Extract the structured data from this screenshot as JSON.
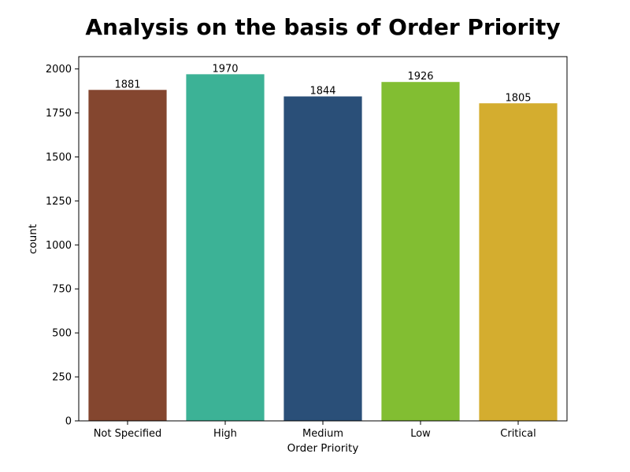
{
  "chart_data": {
    "type": "bar",
    "title": "Analysis on the basis of Order Priority",
    "xlabel": "Order Priority",
    "ylabel": "count",
    "categories": [
      "Not Specified",
      "High",
      "Medium",
      "Low",
      "Critical"
    ],
    "values": [
      1881,
      1970,
      1844,
      1926,
      1805
    ],
    "data_labels": [
      "1881",
      "1970",
      "1844",
      "1926",
      "1805"
    ],
    "colors": [
      "#84462f",
      "#3cb296",
      "#2a4f78",
      "#82be32",
      "#d4ad2f"
    ],
    "ylim": [
      0,
      2070
    ],
    "yticks": [
      0,
      250,
      500,
      750,
      1000,
      1250,
      1500,
      1750,
      2000
    ],
    "ytick_labels": [
      "0",
      "250",
      "500",
      "750",
      "1000",
      "1250",
      "1500",
      "1750",
      "2000"
    ],
    "grid": false,
    "legend": false
  }
}
